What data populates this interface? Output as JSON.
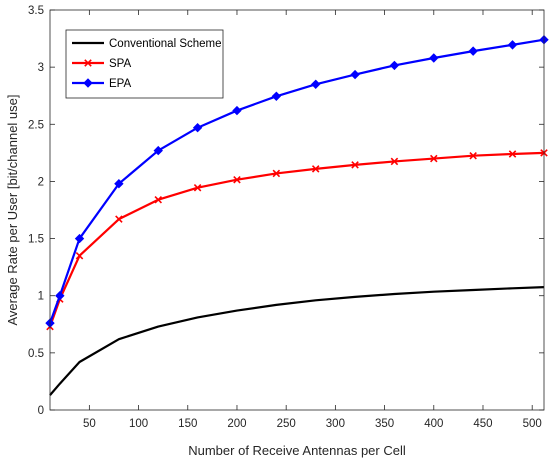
{
  "chart_data": {
    "type": "line",
    "title": "",
    "xlabel": "Number of Receive Antennas per Cell",
    "ylabel": "Average Rate per User [bit/channel use]",
    "xlim": [
      10,
      512
    ],
    "ylim": [
      0,
      3.5
    ],
    "xticks": [
      50,
      100,
      150,
      200,
      250,
      300,
      350,
      400,
      450,
      500
    ],
    "yticks": [
      0,
      0.5,
      1,
      1.5,
      2,
      2.5,
      3,
      3.5
    ],
    "grid": false,
    "legend_position": "top-left",
    "series": [
      {
        "name": "Conventional Scheme",
        "color": "#000000",
        "marker": "none",
        "x": [
          10,
          20,
          40,
          80,
          120,
          160,
          200,
          240,
          280,
          320,
          360,
          400,
          440,
          480,
          512
        ],
        "y": [
          0.13,
          0.23,
          0.42,
          0.62,
          0.73,
          0.81,
          0.87,
          0.92,
          0.96,
          0.99,
          1.015,
          1.035,
          1.05,
          1.065,
          1.075
        ]
      },
      {
        "name": "SPA",
        "color": "#ff0000",
        "marker": "x",
        "x": [
          10,
          20,
          40,
          80,
          120,
          160,
          200,
          240,
          280,
          320,
          360,
          400,
          440,
          480,
          512
        ],
        "y": [
          0.73,
          0.97,
          1.35,
          1.67,
          1.84,
          1.945,
          2.015,
          2.07,
          2.11,
          2.145,
          2.175,
          2.2,
          2.225,
          2.24,
          2.25
        ]
      },
      {
        "name": "EPA",
        "color": "#0000ff",
        "marker": "diamond",
        "x": [
          10,
          20,
          40,
          80,
          120,
          160,
          200,
          240,
          280,
          320,
          360,
          400,
          440,
          480,
          512
        ],
        "y": [
          0.76,
          1.0,
          1.5,
          1.98,
          2.27,
          2.47,
          2.62,
          2.745,
          2.85,
          2.935,
          3.015,
          3.08,
          3.14,
          3.195,
          3.24
        ]
      }
    ]
  }
}
